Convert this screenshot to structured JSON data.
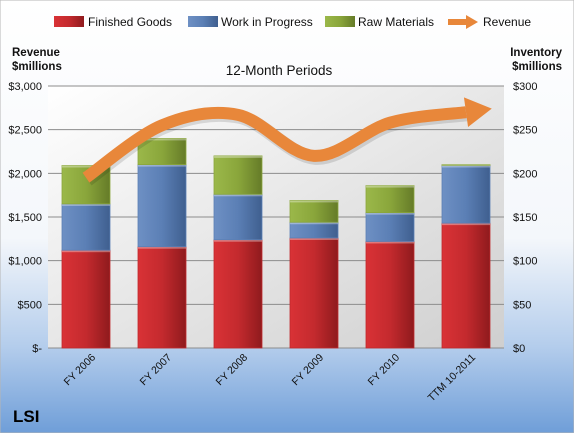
{
  "chart_data": {
    "type": "bar",
    "stacked": true,
    "title": "12-Month Periods",
    "brand": "LSI",
    "categories": [
      "FY 2006",
      "FY 2007",
      "FY 2008",
      "FY 2009",
      "FY 2010",
      "TTM 10-2011"
    ],
    "series": [
      {
        "name": "Finished Goods",
        "axis": "right",
        "values": [
          112,
          116,
          124,
          126,
          122,
          143
        ]
      },
      {
        "name": "Work in Progress",
        "axis": "right",
        "values": [
          53,
          94,
          52,
          18,
          33,
          66
        ]
      },
      {
        "name": "Raw Materials",
        "axis": "right",
        "values": [
          44,
          30,
          44,
          25,
          31,
          1
        ]
      }
    ],
    "line_series": {
      "name": "Revenue",
      "axis": "left",
      "values": [
        1950,
        2550,
        2670,
        2200,
        2580,
        2700
      ]
    },
    "left_axis": {
      "label_line1": "Revenue",
      "label_line2": "$millions",
      "range": [
        0,
        3000
      ],
      "ticks": [
        "$-",
        "$500",
        "$1,000",
        "$1,500",
        "$2,000",
        "$2,500",
        "$3,000"
      ]
    },
    "right_axis": {
      "label_line1": "Inventory",
      "label_line2": "$millions",
      "range": [
        0,
        300
      ],
      "ticks": [
        "$0",
        "$50",
        "$100",
        "$150",
        "$200",
        "$250",
        "$300"
      ]
    },
    "grid": true,
    "legend": "top",
    "colors": {
      "finished_goods": "#c0282c",
      "work_in_progress": "#5b7fb5",
      "raw_materials": "#8aa63b",
      "revenue": "#e8873a",
      "grid": "#8c8c8c"
    }
  }
}
